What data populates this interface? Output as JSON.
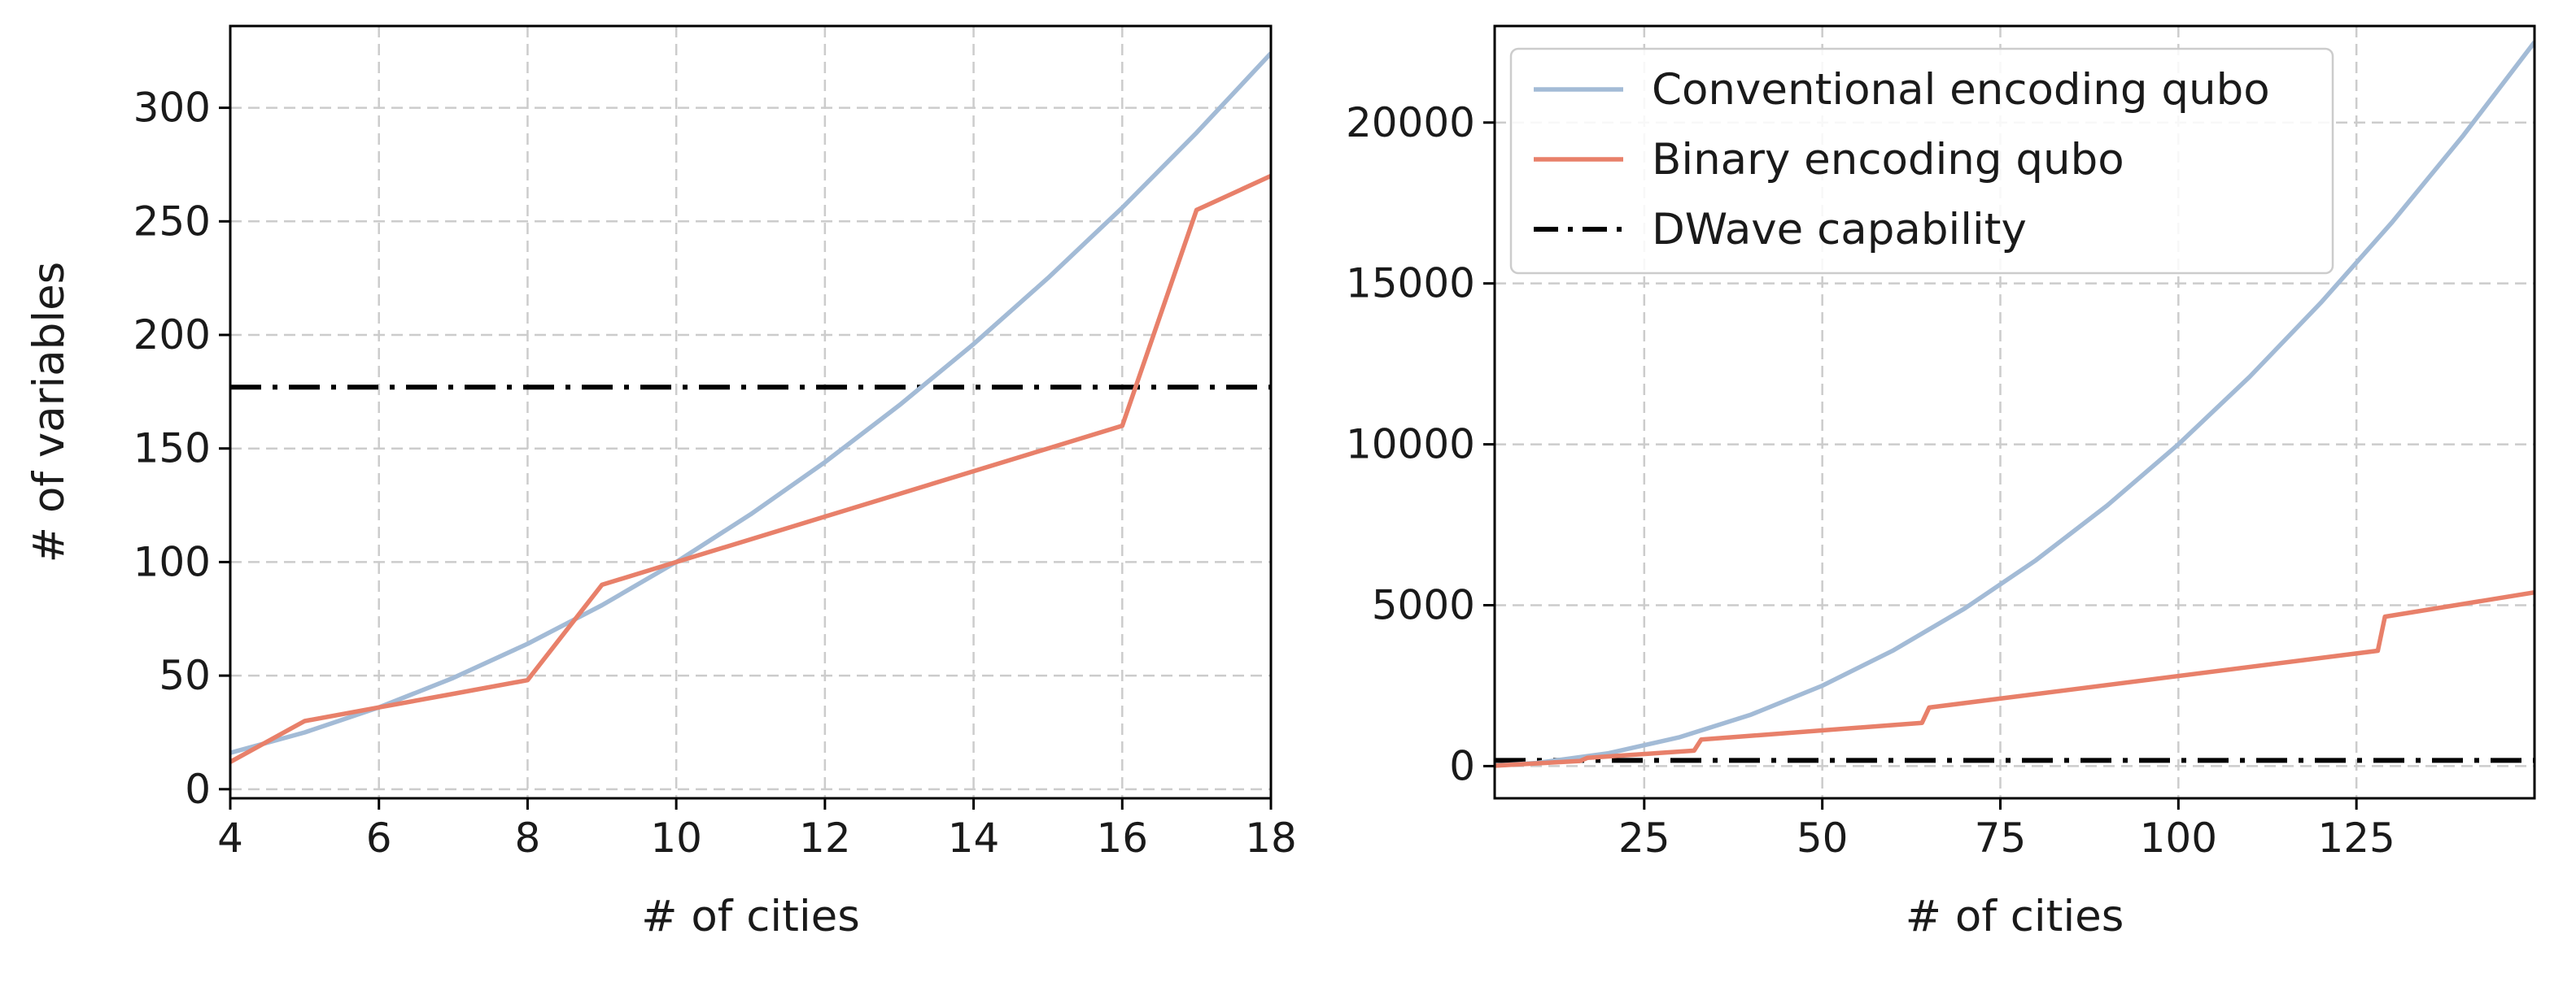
{
  "chart_data": [
    {
      "type": "line",
      "xlabel": "# of cities",
      "ylabel": "# of variables",
      "xlim": [
        4,
        18
      ],
      "ylim": [
        -4,
        336
      ],
      "xticks": [
        4,
        6,
        8,
        10,
        12,
        14,
        16,
        18
      ],
      "yticks": [
        0,
        50,
        100,
        150,
        200,
        250,
        300
      ],
      "xtick_labels": [
        "4",
        "6",
        "8",
        "10",
        "12",
        "14",
        "16",
        "18"
      ],
      "ytick_labels": [
        "0",
        "50",
        "100",
        "150",
        "200",
        "250",
        "300"
      ],
      "grid": true,
      "series": [
        {
          "name": "Conventional encoding qubo",
          "color": "#a3bbd6",
          "style": "solid",
          "x": [
            4,
            5,
            6,
            7,
            8,
            9,
            10,
            11,
            12,
            13,
            14,
            15,
            16,
            17,
            18
          ],
          "y": [
            16,
            25,
            36,
            49,
            64,
            81,
            100,
            121,
            144,
            169,
            196,
            225,
            256,
            289,
            324
          ]
        },
        {
          "name": "Binary encoding qubo",
          "color": "#e8806a",
          "style": "solid",
          "x": [
            4,
            5,
            6,
            7,
            8,
            9,
            10,
            11,
            12,
            13,
            14,
            15,
            16,
            17,
            18
          ],
          "y": [
            12,
            30,
            36,
            42,
            48,
            90,
            100,
            110,
            120,
            130,
            140,
            150,
            160,
            255,
            270
          ]
        },
        {
          "name": "DWave capability",
          "color": "#000000",
          "style": "dashdot",
          "x": [
            4,
            18
          ],
          "y": [
            177,
            177
          ]
        }
      ]
    },
    {
      "type": "line",
      "xlabel": "# of cities",
      "ylabel": "",
      "xlim": [
        4,
        150
      ],
      "ylim": [
        -1000,
        23000
      ],
      "xticks": [
        25,
        50,
        75,
        100,
        125
      ],
      "yticks": [
        0,
        5000,
        10000,
        15000,
        20000
      ],
      "xtick_labels": [
        "25",
        "50",
        "75",
        "100",
        "125"
      ],
      "ytick_labels": [
        "0",
        "5000",
        "10000",
        "15000",
        "20000"
      ],
      "grid": true,
      "legend": {
        "position": "upper-left",
        "entries": [
          "Conventional encoding qubo",
          "Binary encoding qubo",
          "DWave capability"
        ]
      },
      "series": [
        {
          "name": "Conventional encoding qubo",
          "color": "#a3bbd6",
          "style": "solid",
          "x": [
            4,
            10,
            20,
            30,
            40,
            50,
            60,
            70,
            80,
            90,
            100,
            110,
            120,
            130,
            140,
            150
          ],
          "y": [
            16,
            100,
            400,
            900,
            1600,
            2500,
            3600,
            4900,
            6400,
            8100,
            10000,
            12100,
            14400,
            16900,
            19600,
            22500
          ]
        },
        {
          "name": "Binary encoding qubo",
          "color": "#e8806a",
          "style": "solid",
          "x": [
            4,
            16,
            17,
            32,
            33,
            64,
            65,
            128,
            129,
            150
          ],
          "y": [
            12,
            160,
            255,
            480,
            825,
            1344,
            1820,
            3584,
            4644,
            5400
          ]
        },
        {
          "name": "DWave capability",
          "color": "#000000",
          "style": "dashdot",
          "x": [
            4,
            150
          ],
          "y": [
            177,
            177
          ]
        }
      ]
    }
  ]
}
